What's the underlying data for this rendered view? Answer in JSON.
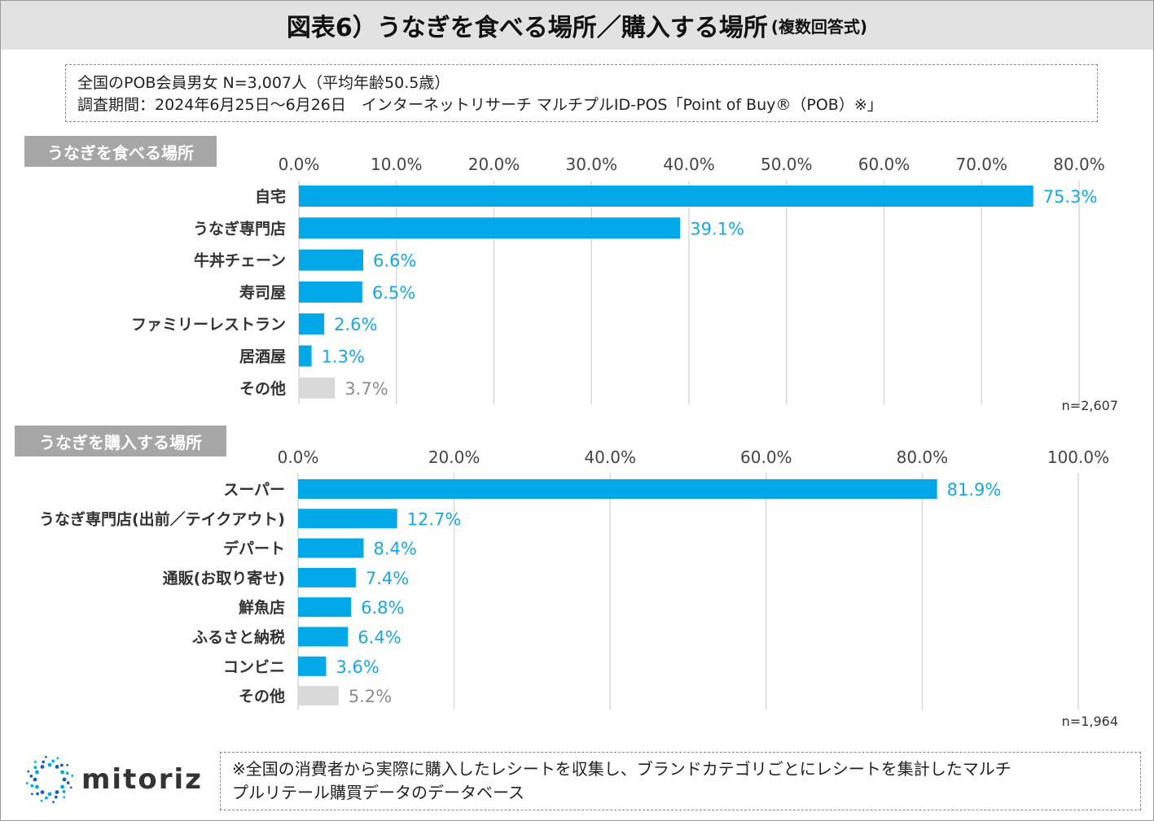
{
  "title": {
    "main": "図表6）うなぎを食べる場所／購入する場所",
    "sub": "(複数回答式)"
  },
  "info": {
    "line1": "全国のPOB会員男女 N=3,007人（平均年齢50.5歳）",
    "line2": "調査期間：2024年6月25日～6月26日　インターネットリサーチ マルチプルID-POS「Point of Buy®（POB）※」"
  },
  "colors": {
    "bar": "#00a8e8",
    "other_bar": "#d9d9d9",
    "label": "#1aa6e0",
    "other_label": "#8c8c8c",
    "grid": "#d9d9d9"
  },
  "chart_data": [
    {
      "type": "bar",
      "orientation": "horizontal",
      "title": "うなぎを食べる場所",
      "categories": [
        "自宅",
        "うなぎ専門店",
        "牛丼チェーン",
        "寿司屋",
        "ファミリーレストラン",
        "居酒屋",
        "その他"
      ],
      "values": [
        75.3,
        39.1,
        6.6,
        6.5,
        2.6,
        1.3,
        3.7
      ],
      "value_labels": [
        "75.3%",
        "39.1%",
        "6.6%",
        "6.5%",
        "2.6%",
        "1.3%",
        "3.7%"
      ],
      "xlim": [
        0,
        80
      ],
      "ticks": [
        0,
        10,
        20,
        30,
        40,
        50,
        60,
        70,
        80
      ],
      "tick_labels": [
        "0.0%",
        "10.0%",
        "20.0%",
        "30.0%",
        "40.0%",
        "50.0%",
        "60.0%",
        "70.0%",
        "80.0%"
      ],
      "n_label": "n=2,607",
      "grid": true
    },
    {
      "type": "bar",
      "orientation": "horizontal",
      "title": "うなぎを購入する場所",
      "categories": [
        "スーパー",
        "うなぎ専門店(出前／テイクアウト)",
        "デパート",
        "通販(お取り寄せ)",
        "鮮魚店",
        "ふるさと納税",
        "コンビニ",
        "その他"
      ],
      "values": [
        81.9,
        12.7,
        8.4,
        7.4,
        6.8,
        6.4,
        3.6,
        5.2
      ],
      "value_labels": [
        "81.9%",
        "12.7%",
        "8.4%",
        "7.4%",
        "6.8%",
        "6.4%",
        "3.6%",
        "5.2%"
      ],
      "xlim": [
        0,
        100
      ],
      "ticks": [
        0,
        20,
        40,
        60,
        80,
        100
      ],
      "tick_labels": [
        "0.0%",
        "20.0%",
        "40.0%",
        "60.0%",
        "80.0%",
        "100.0%"
      ],
      "n_label": "n=1,964",
      "grid": true
    }
  ],
  "note": {
    "line1": "※全国の消費者から実際に購入したレシートを収集し、ブランドカテゴリごとにレシートを集計したマルチ",
    "line2": "プルリテール購買データのデータベース"
  },
  "logo": {
    "text": "mitoriz",
    "icon": "sunburst-logo-icon"
  }
}
